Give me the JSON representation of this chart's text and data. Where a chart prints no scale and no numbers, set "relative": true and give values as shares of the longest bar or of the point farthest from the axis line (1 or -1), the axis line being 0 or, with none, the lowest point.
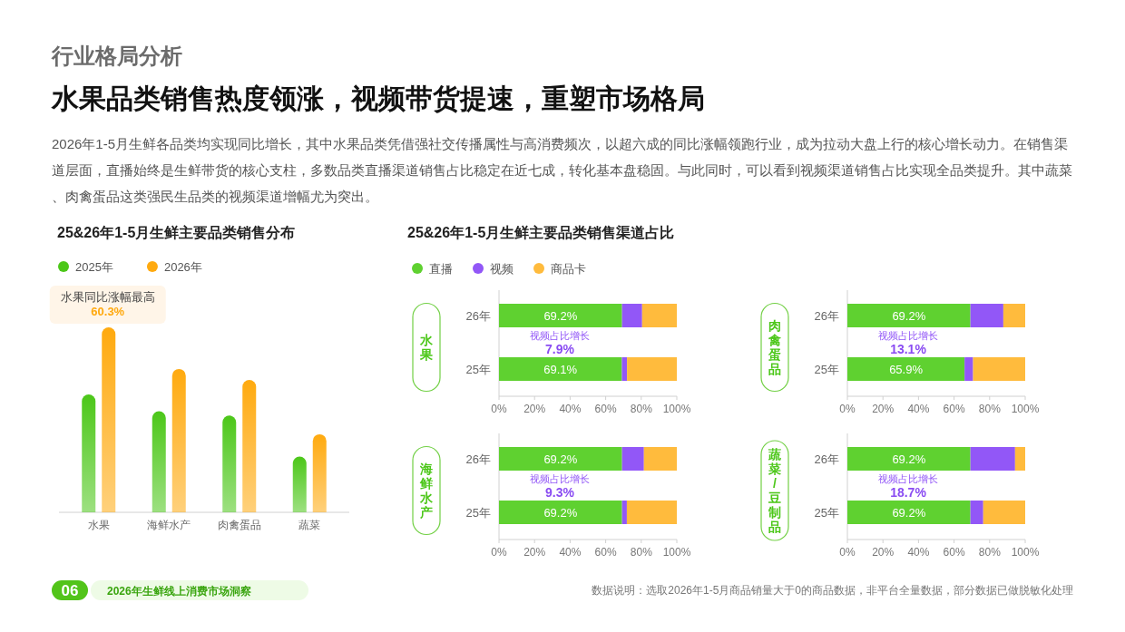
{
  "chart_data": [
    {
      "type": "other",
      "title": "水果品类销售热度领涨，视频带货提速，重塑市场格局",
      "subtitle": "2026年1-5月生鲜各品类均实现同比增长，其中水果品类凭借强社交传播属性与高消费频次，以超六成的同比涨幅领跑行业，成为拉动大盘上行的核心增长动力。在销售渠道层面，直播始终是生鲜带货的核心支柱，多数品类直播渠道销售占比稳定在近七成，转化基本盘稳固。与此同时，可以看到视频渠道销售占比实现全品类提升。其中蔬菜、肉禽蛋品这类强民生品类的视频渠道增幅尤为突出。",
      "annotations": [
        "行业格局分析",
        "06",
        "2026年生鲜线上消费市场洞察",
        "数据说明：选取2026年1-5月商品销量大于0的商品数据，非平台全量数据，部分数据已做脱敏化处理"
      ]
    },
    {
      "type": "bar",
      "title": "25&26年1-5月生鲜主要品类销售分布",
      "categories": [
        "水果",
        "海鲜水产",
        "肉禽蛋品",
        "蔬菜"
      ],
      "relative": true,
      "legend": "top left",
      "series": [
        {
          "name": "2025年",
          "color": "#4cc719",
          "values": [
            0.637,
            0.546,
            0.523,
            0.301
          ]
        },
        {
          "name": "2026年",
          "color": "#ffaa0f",
          "values": [
            1,
            0.775,
            0.716,
            0.422
          ]
        }
      ],
      "annotations": [
        "水果同比涨幅最高",
        "60.3%"
      ]
    },
    {
      "type": "bar",
      "orientation": "horizontal",
      "stacked": true,
      "title": "25&26年1-5月生鲜主要品类销售渠道占比",
      "subtitle": "水果",
      "legend": "top left",
      "categories": [
        "26年",
        "25年"
      ],
      "xlim": [
        0,
        100
      ],
      "xticks": [
        {
          "value": 0,
          "label": "0%"
        },
        {
          "value": 20,
          "label": "20%"
        },
        {
          "value": 40,
          "label": "40%"
        },
        {
          "value": 60,
          "label": "60%"
        },
        {
          "value": 80,
          "label": "80%"
        },
        {
          "value": 100,
          "label": "100%"
        }
      ],
      "series": [
        {
          "name": "直播",
          "color": "#5fd130",
          "values": [
            69.2,
            69.1
          ],
          "value_labels": [
            "69.2%",
            "69.1%"
          ]
        },
        {
          "name": "视频",
          "color": "#9257f7",
          "values": [
            11.3,
            2.9
          ]
        },
        {
          "name": "商品卡",
          "color": "#ffbb3d",
          "values": [
            19.5,
            28.0
          ]
        }
      ],
      "annotations": [
        "视频占比增长",
        "7.9%"
      ]
    },
    {
      "type": "bar",
      "orientation": "horizontal",
      "stacked": true,
      "subtitle": "肉禽蛋品",
      "categories": [
        "26年",
        "25年"
      ],
      "xlim": [
        0,
        100
      ],
      "xticks": [
        {
          "value": 0,
          "label": "0%"
        },
        {
          "value": 20,
          "label": "20%"
        },
        {
          "value": 40,
          "label": "40%"
        },
        {
          "value": 60,
          "label": "60%"
        },
        {
          "value": 80,
          "label": "80%"
        },
        {
          "value": 100,
          "label": "100%"
        }
      ],
      "series": [
        {
          "color": "#5fd130",
          "values": [
            69.2,
            65.9
          ],
          "value_labels": [
            "69.2%",
            "65.9%"
          ]
        },
        {
          "color": "#9257f7",
          "values": [
            18.5,
            4.8
          ]
        },
        {
          "color": "#ffbb3d",
          "values": [
            12.3,
            29.3
          ]
        }
      ],
      "annotations": [
        "视频占比增长",
        "13.1%"
      ]
    },
    {
      "type": "bar",
      "orientation": "horizontal",
      "stacked": true,
      "subtitle": "海鲜水产",
      "categories": [
        "26年",
        "25年"
      ],
      "xlim": [
        0,
        100
      ],
      "xticks": [
        {
          "value": 0,
          "label": "0%"
        },
        {
          "value": 20,
          "label": "20%"
        },
        {
          "value": 40,
          "label": "40%"
        },
        {
          "value": 60,
          "label": "60%"
        },
        {
          "value": 80,
          "label": "80%"
        },
        {
          "value": 100,
          "label": "100%"
        }
      ],
      "series": [
        {
          "color": "#5fd130",
          "values": [
            69.2,
            69.2
          ],
          "value_labels": [
            "69.2%",
            "69.2%"
          ]
        },
        {
          "color": "#9257f7",
          "values": [
            12.3,
            2.7
          ]
        },
        {
          "color": "#ffbb3d",
          "values": [
            18.5,
            28.1
          ]
        }
      ],
      "annotations": [
        "视频占比增长",
        "9.3%"
      ]
    },
    {
      "type": "bar",
      "orientation": "horizontal",
      "stacked": true,
      "subtitle": "蔬菜/豆制品",
      "categories": [
        "26年",
        "25年"
      ],
      "xlim": [
        0,
        100
      ],
      "xticks": [
        {
          "value": 0,
          "label": "0%"
        },
        {
          "value": 20,
          "label": "20%"
        },
        {
          "value": 40,
          "label": "40%"
        },
        {
          "value": 60,
          "label": "60%"
        },
        {
          "value": 80,
          "label": "80%"
        },
        {
          "value": 100,
          "label": "100%"
        }
      ],
      "series": [
        {
          "color": "#5fd130",
          "values": [
            69.2,
            69.2
          ],
          "value_labels": [
            "69.2%",
            "69.2%"
          ]
        },
        {
          "color": "#9257f7",
          "values": [
            25.1,
            7.2
          ]
        },
        {
          "color": "#ffbb3d",
          "values": [
            5.7,
            23.6
          ]
        }
      ],
      "annotations": [
        "视频占比增长",
        "18.7%"
      ]
    }
  ]
}
